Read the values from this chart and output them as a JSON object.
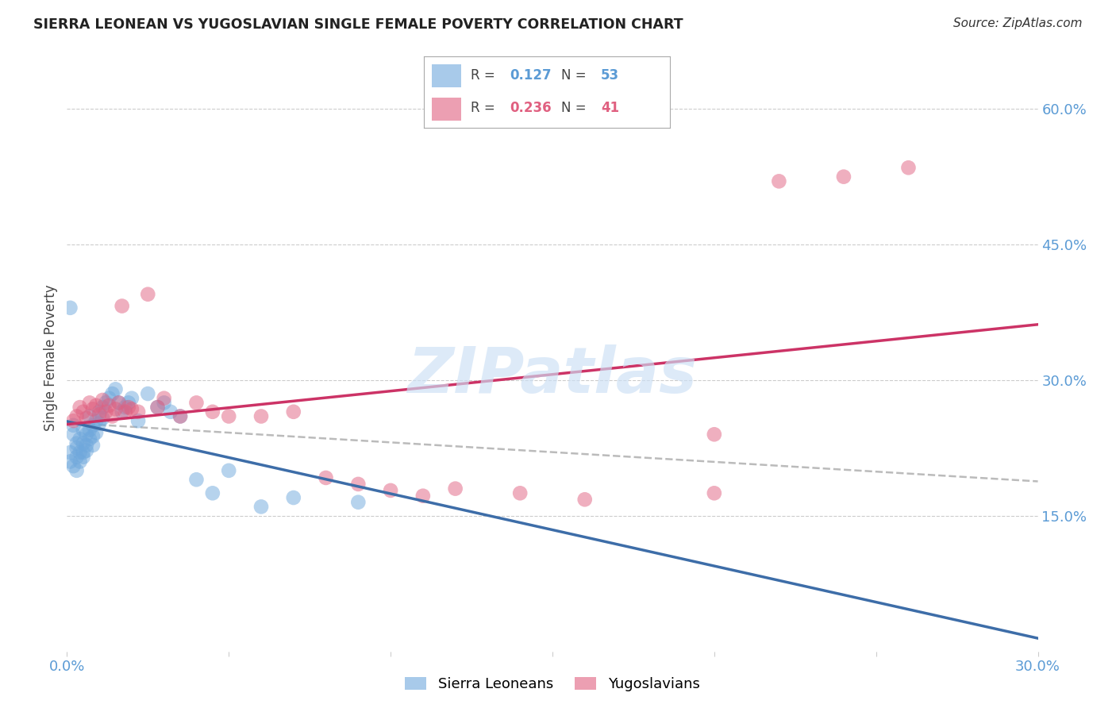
{
  "title": "SIERRA LEONEAN VS YUGOSLAVIAN SINGLE FEMALE POVERTY CORRELATION CHART",
  "source": "Source: ZipAtlas.com",
  "ylabel_label": "Single Female Poverty",
  "xlim": [
    0.0,
    0.3
  ],
  "ylim": [
    0.0,
    0.65
  ],
  "ytick_positions_right": [
    0.6,
    0.45,
    0.3,
    0.15
  ],
  "ytick_labels_right": [
    "60.0%",
    "45.0%",
    "30.0%",
    "15.0%"
  ],
  "sierra_R": 0.127,
  "sierra_N": 53,
  "yugo_R": 0.236,
  "yugo_N": 41,
  "sierra_color": "#6fa8dc",
  "yugo_color": "#e06080",
  "sierra_line_color": "#3d6da8",
  "yugo_line_color": "#cc3366",
  "trend_dash_color": "#bbbbbb",
  "background_color": "#ffffff",
  "watermark": "ZIPatlas",
  "sierra_x": [
    0.001,
    0.001,
    0.002,
    0.002,
    0.002,
    0.003,
    0.003,
    0.003,
    0.003,
    0.004,
    0.004,
    0.004,
    0.005,
    0.005,
    0.005,
    0.005,
    0.006,
    0.006,
    0.006,
    0.007,
    0.007,
    0.007,
    0.008,
    0.008,
    0.008,
    0.009,
    0.009,
    0.01,
    0.01,
    0.011,
    0.011,
    0.012,
    0.013,
    0.014,
    0.015,
    0.016,
    0.017,
    0.018,
    0.019,
    0.02,
    0.022,
    0.025,
    0.028,
    0.03,
    0.032,
    0.035,
    0.04,
    0.045,
    0.05,
    0.06,
    0.07,
    0.09,
    0.001
  ],
  "sierra_y": [
    0.22,
    0.21,
    0.25,
    0.24,
    0.205,
    0.23,
    0.215,
    0.225,
    0.2,
    0.235,
    0.22,
    0.21,
    0.245,
    0.23,
    0.22,
    0.215,
    0.24,
    0.228,
    0.222,
    0.26,
    0.245,
    0.235,
    0.25,
    0.238,
    0.228,
    0.255,
    0.242,
    0.265,
    0.252,
    0.27,
    0.258,
    0.275,
    0.28,
    0.285,
    0.29,
    0.275,
    0.265,
    0.27,
    0.275,
    0.28,
    0.255,
    0.285,
    0.27,
    0.275,
    0.265,
    0.26,
    0.19,
    0.175,
    0.2,
    0.16,
    0.17,
    0.165,
    0.38
  ],
  "yugo_x": [
    0.002,
    0.003,
    0.004,
    0.005,
    0.006,
    0.007,
    0.008,
    0.009,
    0.01,
    0.011,
    0.012,
    0.013,
    0.014,
    0.015,
    0.016,
    0.017,
    0.018,
    0.019,
    0.02,
    0.022,
    0.025,
    0.028,
    0.03,
    0.035,
    0.04,
    0.045,
    0.05,
    0.06,
    0.07,
    0.08,
    0.09,
    0.1,
    0.11,
    0.12,
    0.14,
    0.16,
    0.2,
    0.22,
    0.24,
    0.26,
    0.2
  ],
  "yugo_y": [
    0.255,
    0.26,
    0.27,
    0.265,
    0.258,
    0.275,
    0.268,
    0.272,
    0.262,
    0.278,
    0.265,
    0.272,
    0.26,
    0.268,
    0.275,
    0.382,
    0.265,
    0.27,
    0.268,
    0.265,
    0.395,
    0.27,
    0.28,
    0.26,
    0.275,
    0.265,
    0.26,
    0.26,
    0.265,
    0.192,
    0.185,
    0.178,
    0.172,
    0.18,
    0.175,
    0.168,
    0.24,
    0.52,
    0.525,
    0.535,
    0.175
  ]
}
